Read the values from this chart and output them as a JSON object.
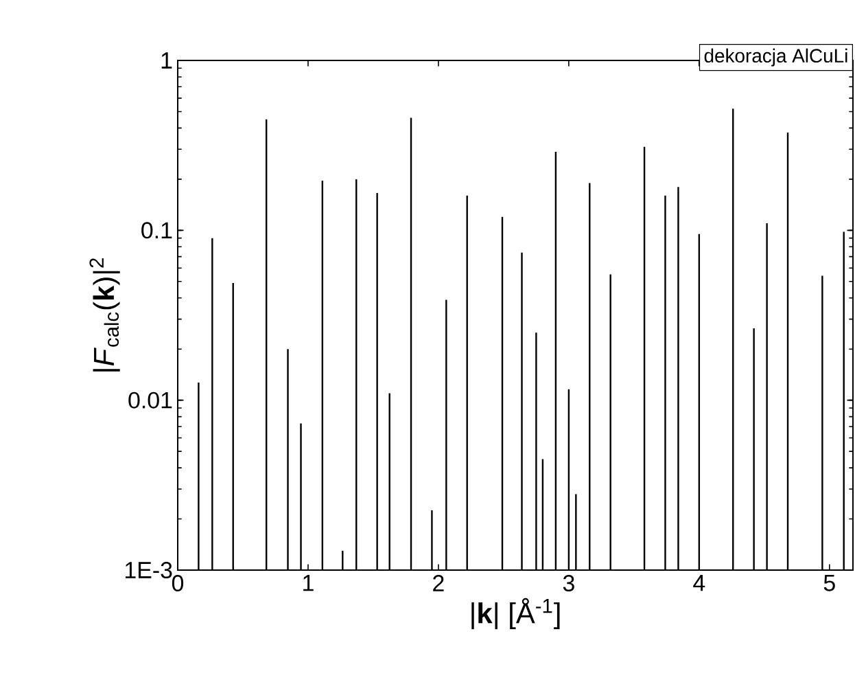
{
  "chart_data": {
    "type": "bar",
    "xlabel": "|**k**| [Å$^{-1}$]",
    "ylabel": "|*F*$_{calc}$(**k**)|$^{2}$",
    "annotations": [
      "dekoracja AlCuLi"
    ],
    "x": [
      0.16,
      0.265,
      0.425,
      0.68,
      0.845,
      0.945,
      1.11,
      1.265,
      1.37,
      1.53,
      1.625,
      1.79,
      1.95,
      2.06,
      2.22,
      2.49,
      2.64,
      2.75,
      2.8,
      2.9,
      3.0,
      3.055,
      3.16,
      3.32,
      3.58,
      3.74,
      3.84,
      4.0,
      4.26,
      4.42,
      4.52,
      4.68,
      4.945,
      5.11
    ],
    "values": [
      0.0127,
      0.09,
      0.049,
      0.45,
      0.02,
      0.0073,
      0.196,
      0.0013,
      0.2,
      0.166,
      0.011,
      0.46,
      0.00225,
      0.039,
      0.16,
      0.12,
      0.074,
      0.025,
      0.0045,
      0.29,
      0.0116,
      0.0028,
      0.19,
      0.055,
      0.31,
      0.16,
      0.18,
      0.095,
      0.52,
      0.0265,
      0.11,
      0.376,
      0.054,
      0.098
    ],
    "color": "#000000",
    "log": "y",
    "xlim": [
      0,
      5.18
    ],
    "ylim": [
      0.001,
      1
    ],
    "xticks": [
      0,
      1,
      2,
      3,
      4,
      5
    ],
    "yticks": [
      {
        "value": 0.001,
        "label": "1E-3"
      },
      0.01,
      0.1,
      1
    ]
  }
}
